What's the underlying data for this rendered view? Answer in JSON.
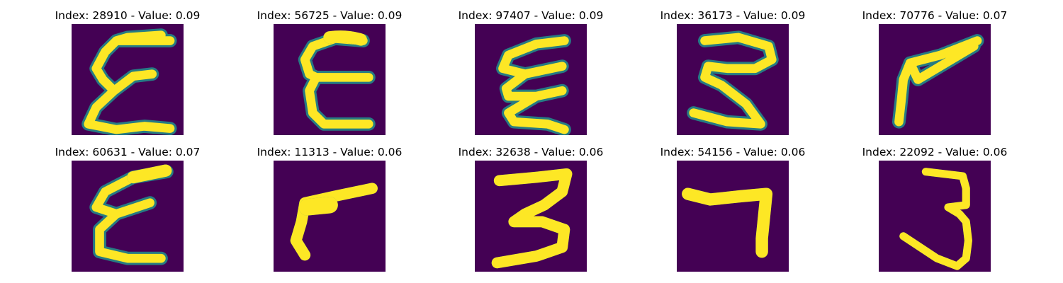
{
  "figure": {
    "background": "#440154",
    "stroke_color": "#fde725",
    "edge_color": "#21918c",
    "panels": [
      {
        "title": "Index: 28910 - Value: 0.09",
        "index": 28910,
        "value": 0.09,
        "digit": "E-like"
      },
      {
        "title": "Index: 56725 - Value: 0.09",
        "index": 56725,
        "value": 0.09,
        "digit": "E-like"
      },
      {
        "title": "Index: 97407 - Value: 0.09",
        "index": 97407,
        "value": 0.09,
        "digit": "Sigma-like"
      },
      {
        "title": "Index: 36173 - Value: 0.09",
        "index": 36173,
        "value": 0.09,
        "digit": "3-like"
      },
      {
        "title": "Index: 70776 - Value: 0.07",
        "index": 70776,
        "value": 0.07,
        "digit": "7-like"
      },
      {
        "title": "Index: 60631 - Value: 0.07",
        "index": 60631,
        "value": 0.07,
        "digit": "Sigma-like"
      },
      {
        "title": "Index: 11313 - Value: 0.06",
        "index": 11313,
        "value": 0.06,
        "digit": "7-like"
      },
      {
        "title": "Index: 32638 - Value: 0.06",
        "index": 32638,
        "value": 0.06,
        "digit": "3"
      },
      {
        "title": "Index: 54156 - Value: 0.06",
        "index": 54156,
        "value": 0.06,
        "digit": "7"
      },
      {
        "title": "Index: 22092 - Value: 0.06",
        "index": 22092,
        "value": 0.06,
        "digit": "3"
      }
    ]
  }
}
